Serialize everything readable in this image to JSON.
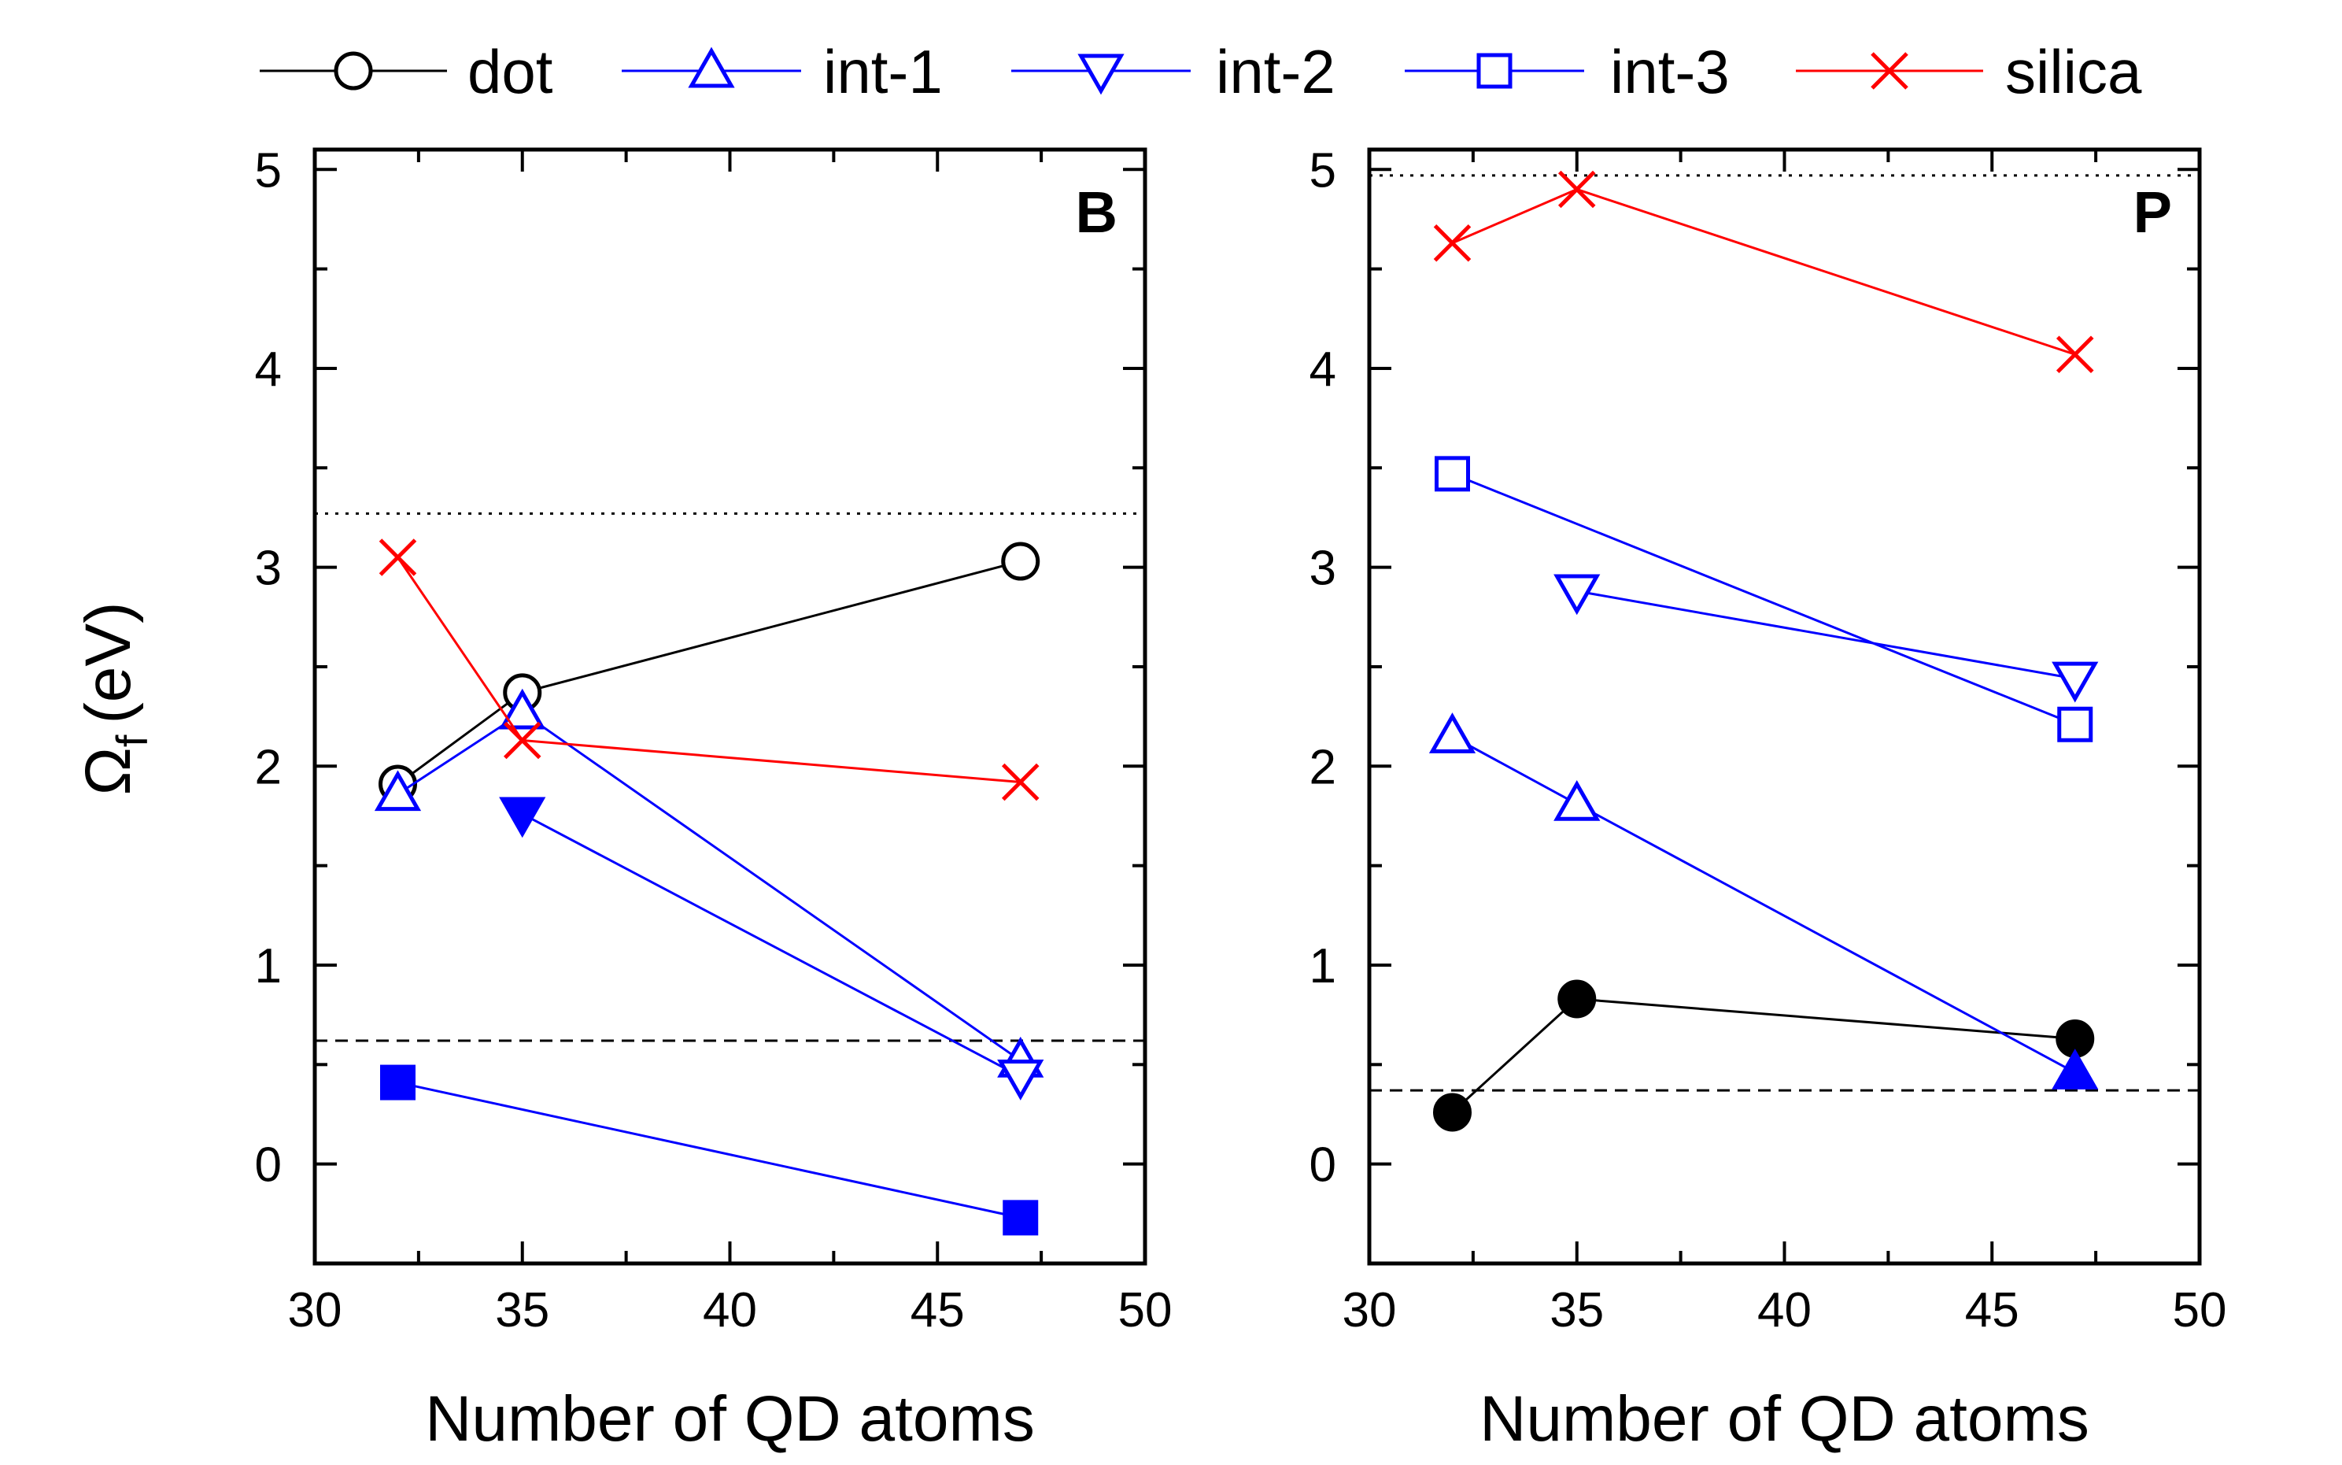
{
  "legend": [
    {
      "key": "dot",
      "label": "dot"
    },
    {
      "key": "int1",
      "label": "int-1"
    },
    {
      "key": "int2",
      "label": "int-2"
    },
    {
      "key": "int3",
      "label": "int-3"
    },
    {
      "key": "silica",
      "label": "silica"
    }
  ],
  "styles": {
    "dot": {
      "color": "#000000",
      "marker": "circle"
    },
    "int1": {
      "color": "#0000ff",
      "marker": "triangle-up"
    },
    "int2": {
      "color": "#0000ff",
      "marker": "triangle-down"
    },
    "int3": {
      "color": "#0000ff",
      "marker": "square"
    },
    "silica": {
      "color": "#ff0000",
      "marker": "x"
    }
  },
  "chart_data": [
    {
      "type": "line",
      "panel_label": "B",
      "xlabel": "Number of QD atoms",
      "ylabel_main": "Ω",
      "ylabel_sub": "f",
      "ylabel_unit": "(eV)",
      "xlim": [
        30,
        50
      ],
      "ylim": [
        -0.5,
        5.1
      ],
      "xticks": [
        30,
        35,
        40,
        45,
        50
      ],
      "yticks": [
        0,
        1,
        2,
        3,
        4,
        5
      ],
      "reference_lines": [
        {
          "y": 3.27,
          "style": "dotted"
        },
        {
          "y": 0.62,
          "style": "dashed"
        }
      ],
      "series": [
        {
          "key": "dot",
          "points": [
            {
              "x": 32,
              "y": 1.91,
              "filled": false
            },
            {
              "x": 35,
              "y": 2.37,
              "filled": false
            },
            {
              "x": 47,
              "y": 3.03,
              "filled": false
            }
          ]
        },
        {
          "key": "int1",
          "points": [
            {
              "x": 32,
              "y": 1.86,
              "filled": false
            },
            {
              "x": 35,
              "y": 2.27,
              "filled": false
            },
            {
              "x": 47,
              "y": 0.52,
              "filled": false
            }
          ]
        },
        {
          "key": "int2",
          "points": [
            {
              "x": 35,
              "y": 1.76,
              "filled": true
            },
            {
              "x": 47,
              "y": 0.44,
              "filled": false
            }
          ]
        },
        {
          "key": "int3",
          "points": [
            {
              "x": 32,
              "y": 0.41,
              "filled": true
            },
            {
              "x": 47,
              "y": -0.27,
              "filled": true
            }
          ]
        },
        {
          "key": "silica",
          "points": [
            {
              "x": 32,
              "y": 3.05,
              "filled": false
            },
            {
              "x": 35,
              "y": 2.13,
              "filled": false
            },
            {
              "x": 47,
              "y": 1.92,
              "filled": false
            }
          ]
        }
      ]
    },
    {
      "type": "line",
      "panel_label": "P",
      "xlabel": "Number of QD atoms",
      "ylabel_main": "",
      "ylabel_sub": "",
      "ylabel_unit": "",
      "xlim": [
        30,
        50
      ],
      "ylim": [
        -0.5,
        5.1
      ],
      "xticks": [
        30,
        35,
        40,
        45,
        50
      ],
      "yticks": [
        0,
        1,
        2,
        3,
        4,
        5
      ],
      "reference_lines": [
        {
          "y": 4.97,
          "style": "dotted"
        },
        {
          "y": 0.37,
          "style": "dashed"
        }
      ],
      "series": [
        {
          "key": "dot",
          "points": [
            {
              "x": 32,
              "y": 0.26,
              "filled": true
            },
            {
              "x": 35,
              "y": 0.83,
              "filled": true
            },
            {
              "x": 47,
              "y": 0.63,
              "filled": true
            }
          ]
        },
        {
          "key": "int1",
          "points": [
            {
              "x": 32,
              "y": 2.15,
              "filled": false
            },
            {
              "x": 35,
              "y": 1.81,
              "filled": false
            },
            {
              "x": 47,
              "y": 0.46,
              "filled": true
            }
          ]
        },
        {
          "key": "int2",
          "points": [
            {
              "x": 35,
              "y": 2.88,
              "filled": false
            },
            {
              "x": 47,
              "y": 2.44,
              "filled": false
            }
          ]
        },
        {
          "key": "int3",
          "points": [
            {
              "x": 32,
              "y": 3.47,
              "filled": false
            },
            {
              "x": 47,
              "y": 2.21,
              "filled": false
            }
          ]
        },
        {
          "key": "silica",
          "points": [
            {
              "x": 32,
              "y": 4.63,
              "filled": false
            },
            {
              "x": 35,
              "y": 4.9,
              "filled": false
            },
            {
              "x": 47,
              "y": 4.07,
              "filled": false
            }
          ]
        }
      ]
    }
  ]
}
